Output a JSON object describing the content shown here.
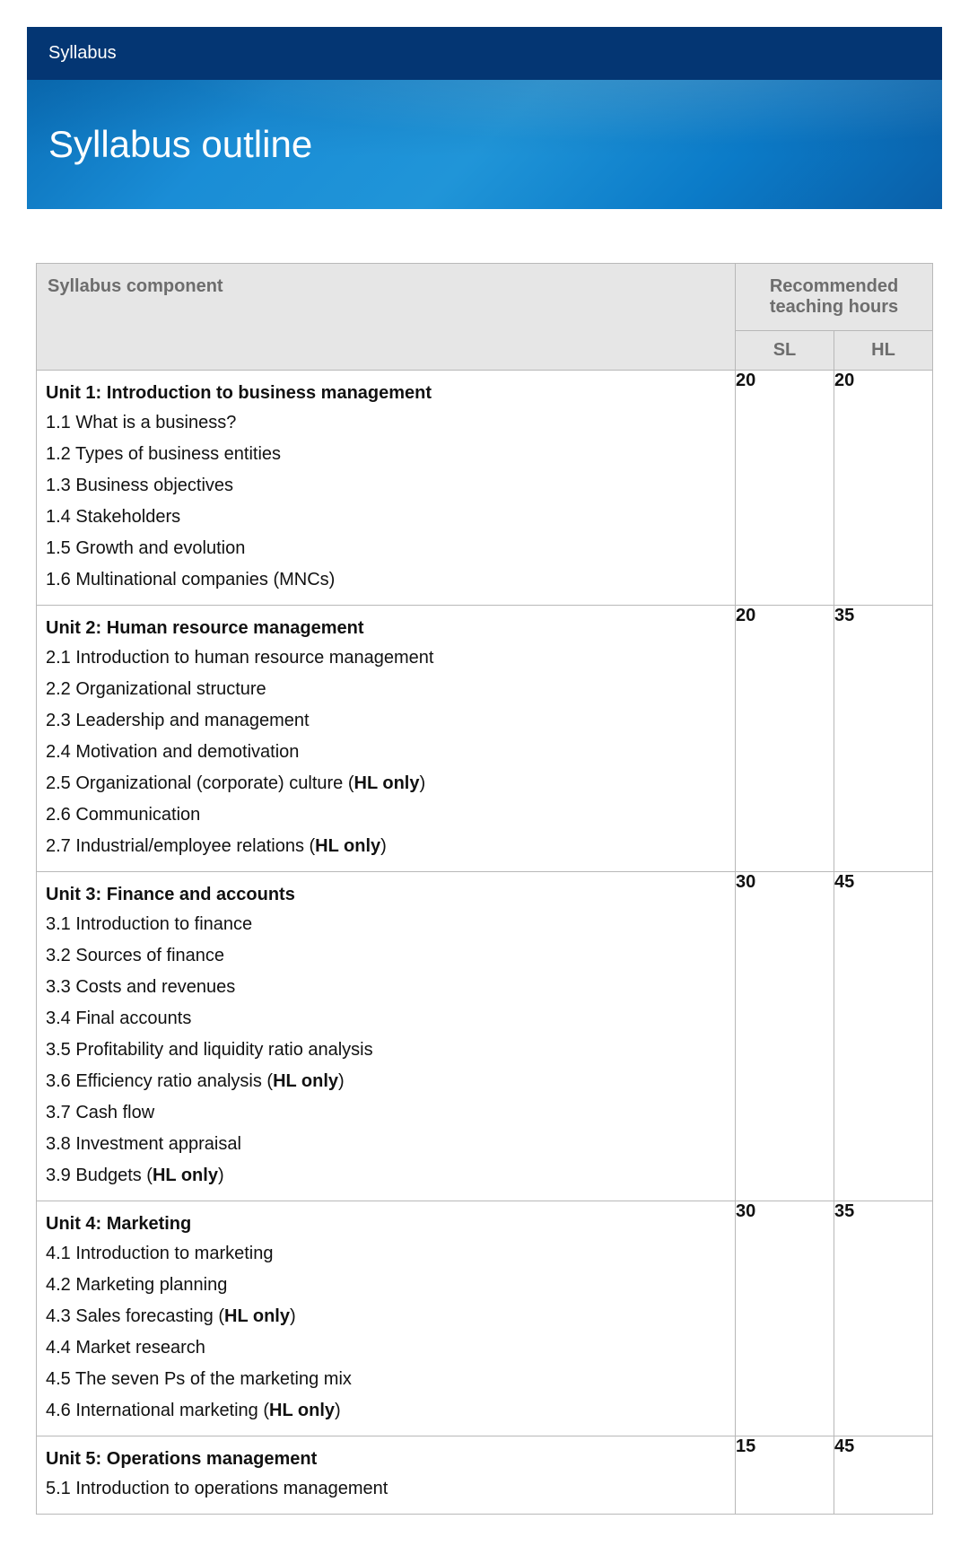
{
  "header": {
    "label": "Syllabus",
    "title": "Syllabus outline"
  },
  "table": {
    "columns": {
      "component": "Syllabus component",
      "hours": "Recommended teaching hours",
      "sl": "SL",
      "hl": "HL"
    },
    "hl_only_label": "HL only",
    "units": [
      {
        "title": "Unit 1: Introduction to business management",
        "sl": "20",
        "hl": "20",
        "topics": [
          {
            "text": "1.1 What is a business?",
            "hl_only": false
          },
          {
            "text": "1.2 Types of business entities",
            "hl_only": false
          },
          {
            "text": "1.3 Business objectives",
            "hl_only": false
          },
          {
            "text": "1.4 Stakeholders",
            "hl_only": false
          },
          {
            "text": "1.5 Growth and evolution",
            "hl_only": false
          },
          {
            "text": "1.6 Multinational companies (MNCs)",
            "hl_only": false
          }
        ]
      },
      {
        "title": "Unit 2: Human resource management",
        "sl": "20",
        "hl": "35",
        "topics": [
          {
            "text": "2.1 Introduction to human resource management",
            "hl_only": false
          },
          {
            "text": "2.2 Organizational structure",
            "hl_only": false
          },
          {
            "text": "2.3 Leadership and management",
            "hl_only": false
          },
          {
            "text": "2.4 Motivation and demotivation",
            "hl_only": false
          },
          {
            "text": "2.5 Organizational (corporate) culture",
            "hl_only": true
          },
          {
            "text": "2.6 Communication",
            "hl_only": false
          },
          {
            "text": "2.7 Industrial/employee relations",
            "hl_only": true
          }
        ]
      },
      {
        "title": "Unit 3: Finance and accounts",
        "sl": "30",
        "hl": "45",
        "topics": [
          {
            "text": "3.1 Introduction to finance",
            "hl_only": false
          },
          {
            "text": "3.2 Sources of finance",
            "hl_only": false
          },
          {
            "text": "3.3 Costs and revenues",
            "hl_only": false
          },
          {
            "text": "3.4 Final accounts",
            "hl_only": false
          },
          {
            "text": "3.5 Profitability and liquidity ratio analysis",
            "hl_only": false
          },
          {
            "text": "3.6 Efficiency ratio analysis",
            "hl_only": true
          },
          {
            "text": "3.7 Cash flow",
            "hl_only": false
          },
          {
            "text": "3.8 Investment appraisal",
            "hl_only": false
          },
          {
            "text": "3.9 Budgets",
            "hl_only": true
          }
        ]
      },
      {
        "title": "Unit 4: Marketing",
        "sl": "30",
        "hl": "35",
        "topics": [
          {
            "text": "4.1 Introduction to marketing",
            "hl_only": false
          },
          {
            "text": "4.2 Marketing planning",
            "hl_only": false
          },
          {
            "text": "4.3 Sales forecasting",
            "hl_only": true
          },
          {
            "text": "4.4 Market research",
            "hl_only": false
          },
          {
            "text": "4.5 The seven Ps of the marketing mix",
            "hl_only": false
          },
          {
            "text": "4.6 International marketing",
            "hl_only": true
          }
        ]
      },
      {
        "title": "Unit 5: Operations management",
        "sl": "15",
        "hl": "45",
        "topics": [
          {
            "text": "5.1 Introduction to operations management",
            "hl_only": false
          }
        ]
      }
    ]
  },
  "styles": {
    "header_bg": "#043673",
    "banner_gradient": [
      "#0a6fb8",
      "#1a8dd6",
      "#2095d8",
      "#0b7bc8",
      "#0a5fa8"
    ],
    "table_border": "#b8b8b8",
    "header_cell_bg": "#e6e6e6",
    "header_text": "#6d6d6d",
    "body_text": "#111111",
    "font_size_body": 20,
    "font_size_title": 42
  }
}
